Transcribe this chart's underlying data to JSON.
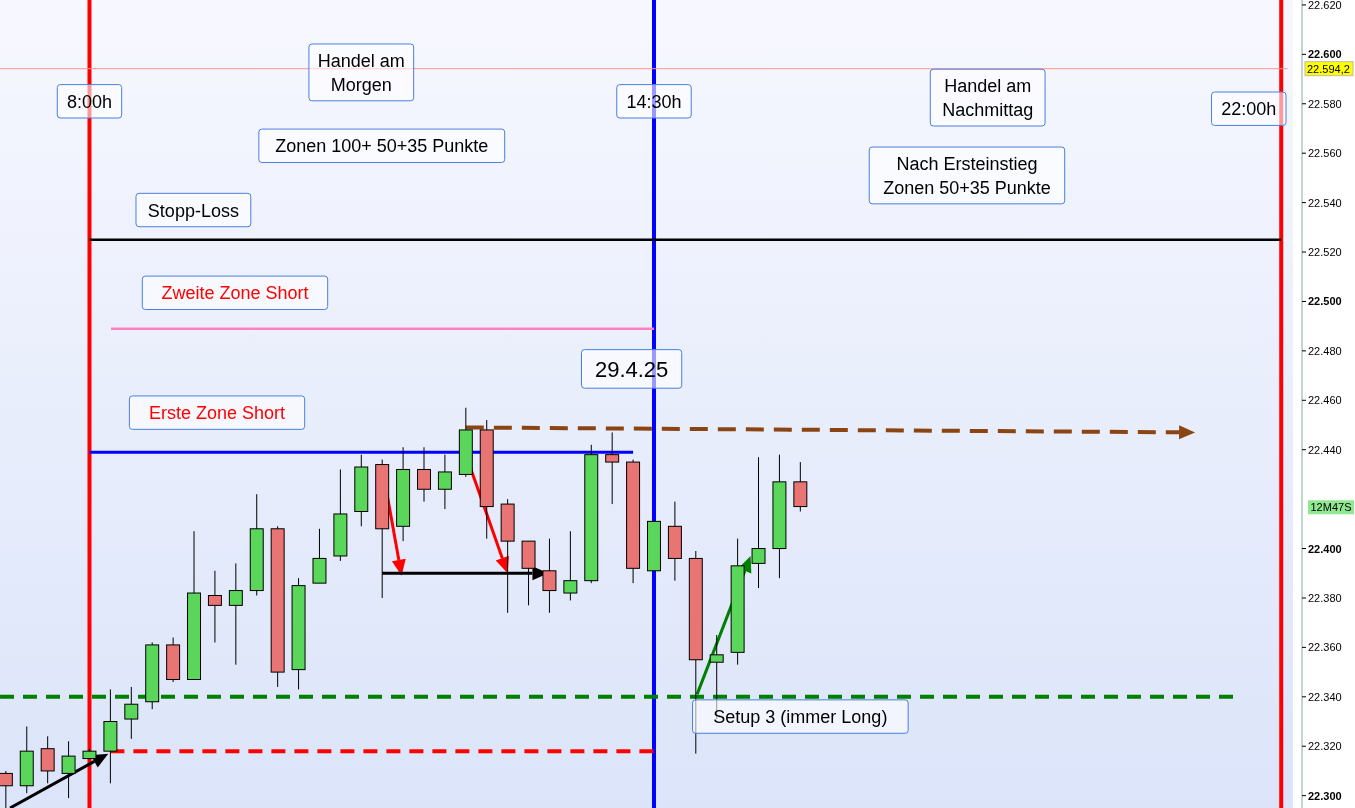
{
  "chart_data": {
    "type": "candlestick",
    "categories": [
      null,
      null,
      null,
      null,
      null,
      null,
      null,
      null,
      null,
      null,
      null,
      null,
      null,
      null,
      null,
      null,
      null,
      null,
      null,
      null,
      null,
      null,
      null,
      null,
      null,
      null,
      null,
      null,
      null,
      null,
      null,
      null,
      null,
      null,
      null,
      null,
      null,
      null,
      null,
      null,
      null,
      null,
      null,
      null,
      null,
      null,
      null,
      null,
      null,
      null,
      null,
      null,
      null,
      null,
      null,
      null,
      null,
      null,
      null,
      null,
      null,
      null
    ],
    "ohlc": [
      [
        22309,
        22310,
        22295,
        22304
      ],
      [
        22304,
        22328,
        22301,
        22318
      ],
      [
        22319,
        22324,
        22305,
        22310
      ],
      [
        22309,
        22322,
        22299,
        22316
      ],
      [
        22315,
        22319,
        22315,
        22318
      ],
      [
        22318,
        22343,
        22305,
        22330
      ],
      [
        22331,
        22344,
        22323,
        22337
      ],
      [
        22338,
        22362,
        22335,
        22361
      ],
      [
        22361,
        22364,
        22346,
        22347
      ],
      [
        22347,
        22407,
        22347,
        22382
      ],
      [
        22381,
        22391,
        22362,
        22377
      ],
      [
        22377,
        22394,
        22353,
        22383
      ],
      [
        22383,
        22422,
        22381,
        22408
      ],
      [
        22408,
        22409,
        22344,
        22350
      ],
      [
        22351,
        22388,
        22343,
        22385
      ],
      [
        22386,
        22408,
        22386,
        22396
      ],
      [
        22397,
        22432,
        22395,
        22414
      ],
      [
        22415,
        22438,
        22409,
        22433
      ],
      [
        22434,
        22436,
        22380,
        22408
      ],
      [
        22409,
        22441,
        22403,
        22432
      ],
      [
        22432,
        22441,
        22419,
        22424
      ],
      [
        22424,
        22438,
        22416,
        22431
      ],
      [
        22430,
        22457,
        22429,
        22448
      ],
      [
        22448,
        22452,
        22404,
        22417
      ],
      [
        22418,
        22420,
        22374,
        22403
      ],
      [
        22403,
        22403,
        22377,
        22392
      ],
      [
        22391,
        22404,
        22374,
        22383
      ],
      [
        22382,
        22407,
        22379,
        22387
      ],
      [
        22387,
        22442,
        22386,
        22438
      ],
      [
        22438,
        22447,
        22418,
        22435
      ],
      [
        22435,
        22436,
        22386,
        22392
      ],
      [
        22391,
        22411,
        22391,
        22411
      ],
      [
        22409,
        22419,
        22387,
        22396
      ],
      [
        22396,
        22399,
        22317,
        22355
      ],
      [
        22354,
        22365,
        22331,
        22357
      ],
      [
        22358,
        22404,
        22353,
        22393
      ],
      [
        22394,
        22437,
        22384,
        22400
      ],
      [
        22400,
        22438,
        22388,
        22427
      ],
      [
        22427,
        22435,
        22415,
        22417
      ],
      null,
      null,
      null,
      null,
      null,
      null,
      null,
      null,
      null,
      null,
      null,
      null,
      null,
      null,
      null,
      null,
      null,
      null,
      null,
      null,
      null,
      null,
      null
    ],
    "ylim": [
      22295,
      22622
    ],
    "yticks": [
      {
        "value": 22300,
        "label": "22.300"
      },
      {
        "value": 22320,
        "label": "22.320"
      },
      {
        "value": 22340,
        "label": "22.340"
      },
      {
        "value": 22360,
        "label": "22.360"
      },
      {
        "value": 22380,
        "label": "22.380"
      },
      {
        "value": 22400,
        "label": "22.400"
      },
      {
        "value": 22440,
        "label": "22.440"
      },
      {
        "value": 22460,
        "label": "22.460"
      },
      {
        "value": 22480,
        "label": "22.480"
      },
      {
        "value": 22500,
        "label": "22.500"
      },
      {
        "value": 22520,
        "label": "22.520"
      },
      {
        "value": 22540,
        "label": "22.540"
      },
      {
        "value": 22560,
        "label": "22.560"
      },
      {
        "value": 22580,
        "label": "22.580"
      },
      {
        "value": 22600,
        "label": "22.600"
      },
      {
        "value": 22620,
        "label": "22.620"
      }
    ],
    "tick_labels": "y",
    "ref_lines": [
      {
        "axis": "y",
        "value": 22525,
        "label": "Stopp-Loss",
        "color": "#000000",
        "line_style": "solid"
      },
      {
        "axis": "y",
        "value": 22489,
        "label": "Zweite Zone Short",
        "color": "#ff80c0",
        "line_style": "solid"
      },
      {
        "axis": "y",
        "value": 22439,
        "label": "Erste Zone Short",
        "color": "#0000ff",
        "line_style": "solid"
      },
      {
        "axis": "y",
        "value": 22318,
        "color": "#ff0000",
        "line_style": "dashed"
      },
      {
        "axis": "y",
        "value": 22340,
        "color": "#008000",
        "line_style": "dashed"
      },
      {
        "axis": "y",
        "value": 22594.2,
        "label": "22.594,2",
        "color": "#ff9090",
        "line_style": "solid"
      }
    ],
    "annotations": [
      "8:00h",
      "14:30h",
      "22:00h",
      "Handel am\nMorgen",
      "Zonen 100+ 50+35 Punkte",
      "Handel am\nNachmittag",
      "Nach Ersteinstieg\nZonen 50+35 Punkte",
      "29.4.25",
      "Setup 3 (immer Long)",
      "12M47S"
    ]
  }
}
